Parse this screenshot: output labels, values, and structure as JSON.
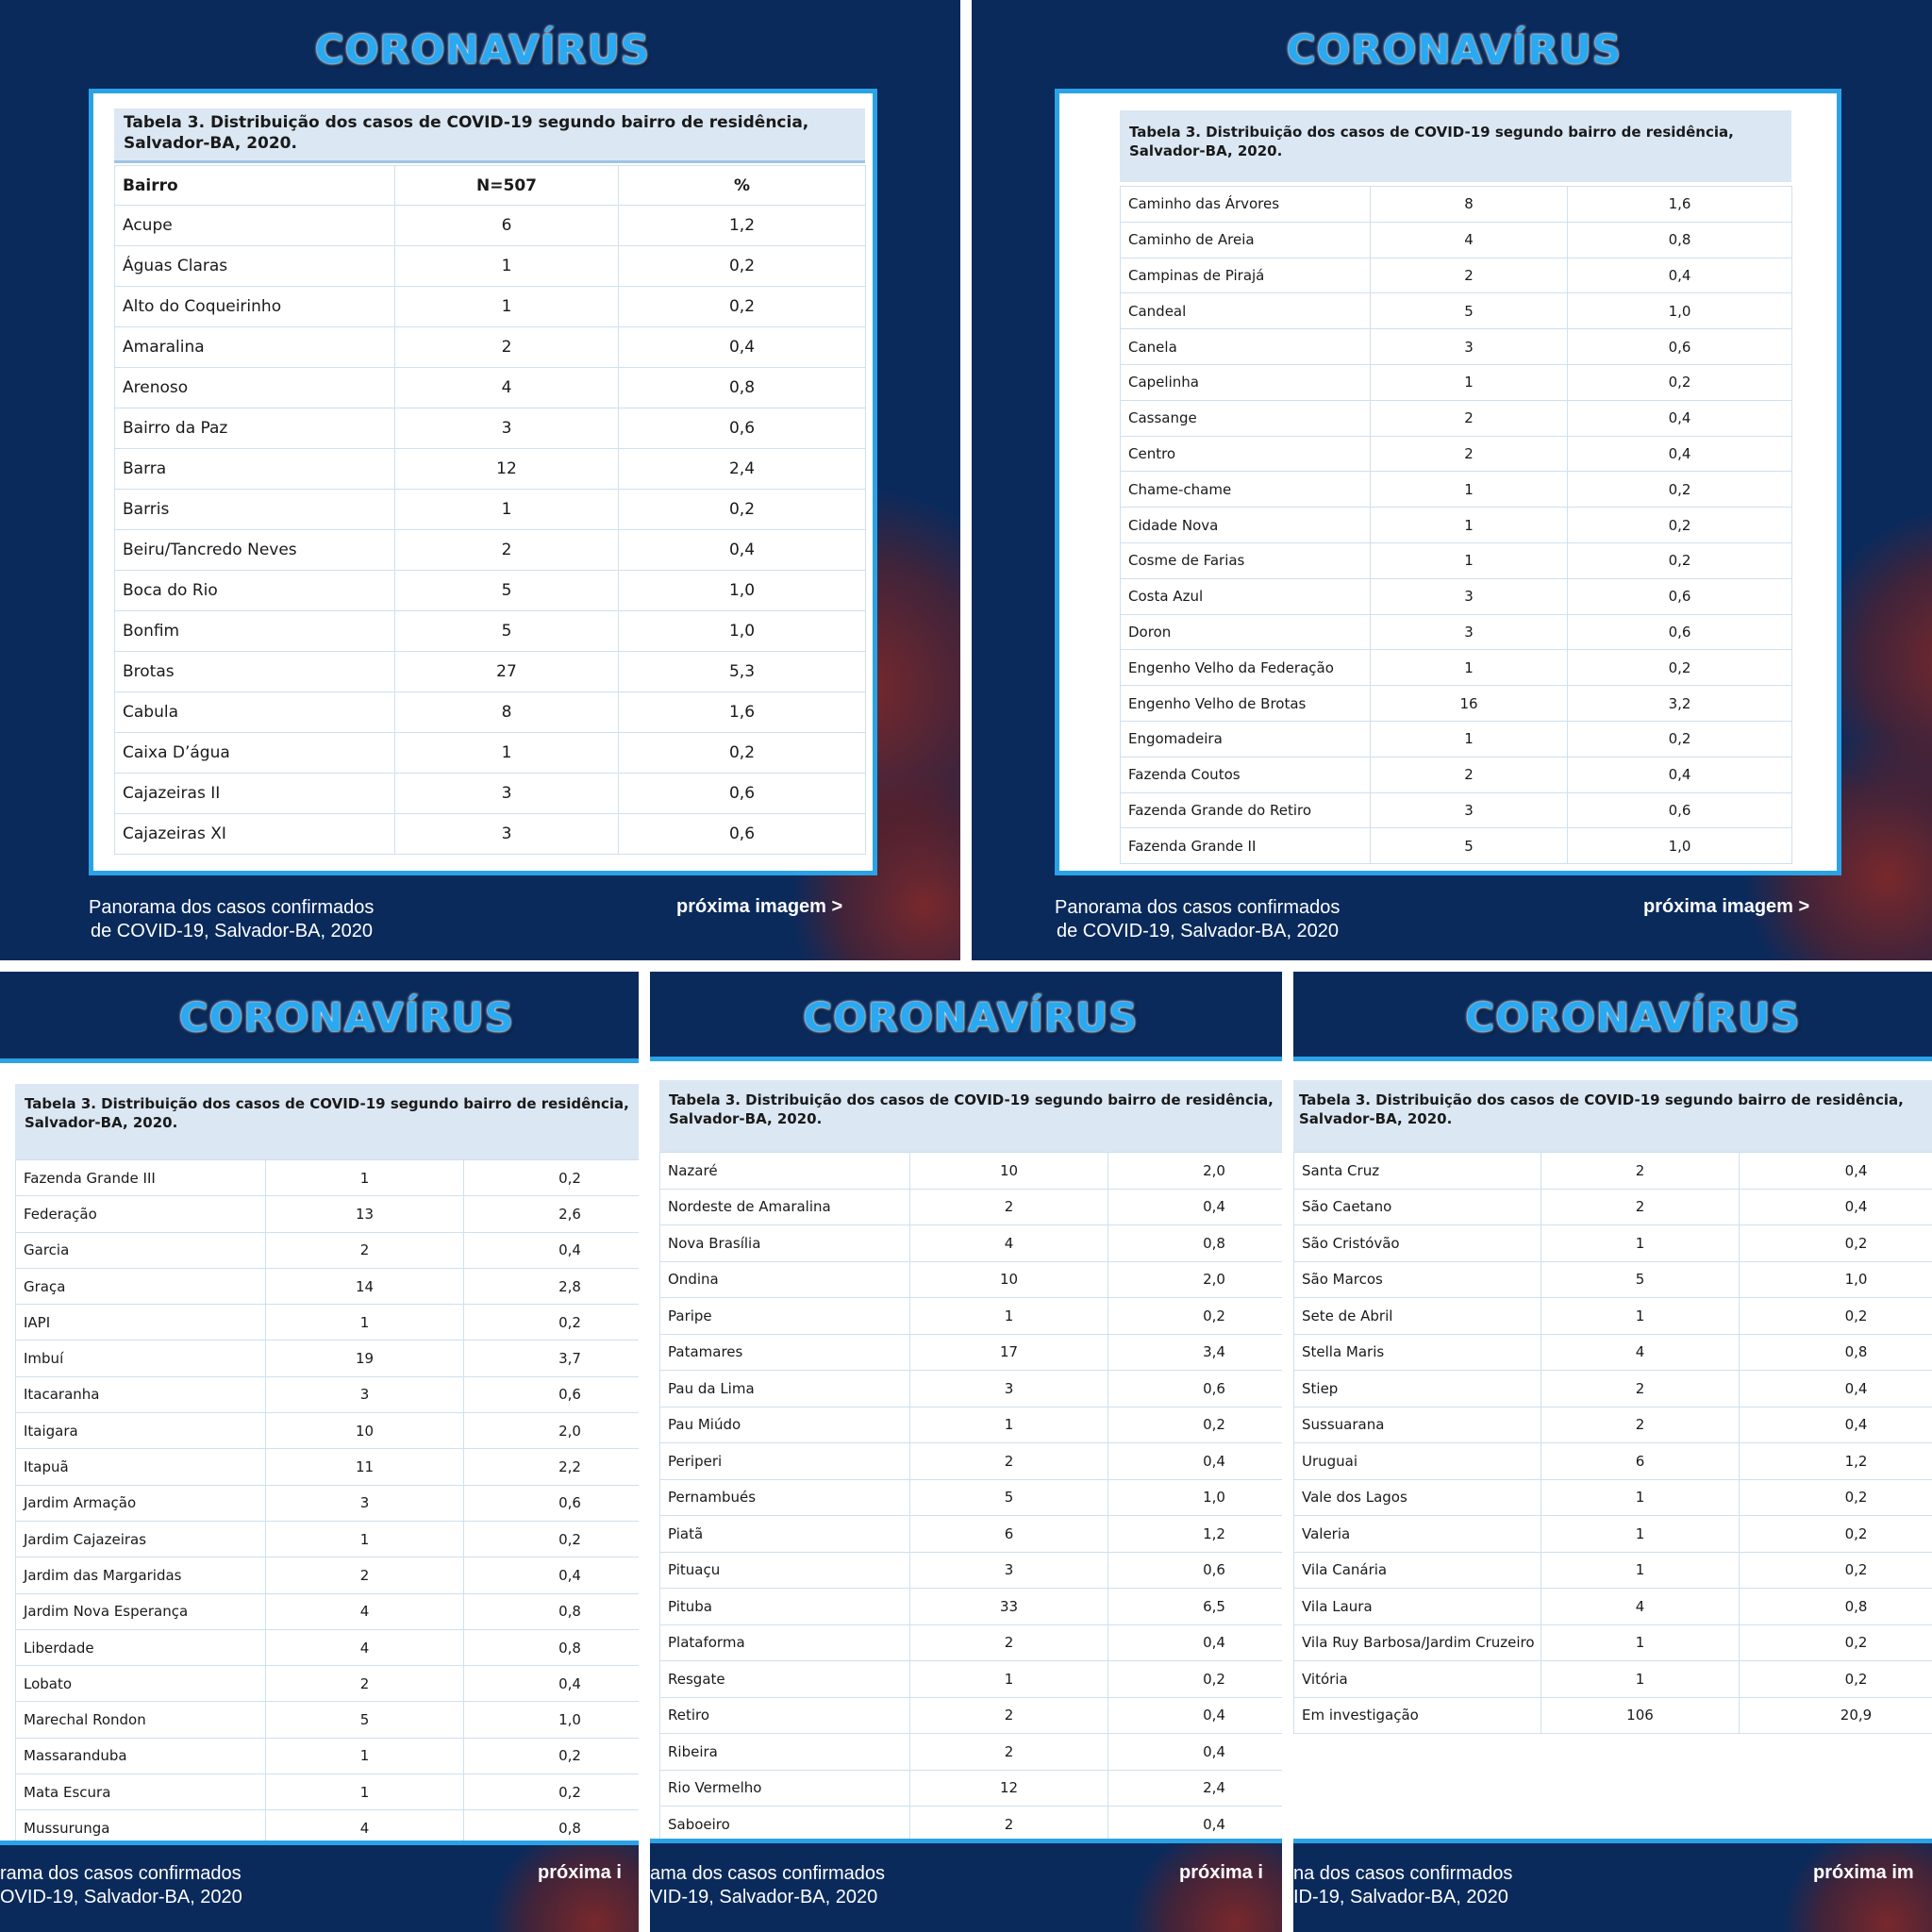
{
  "brand_title": "CORONAVÍRUS",
  "table_caption": "Tabela 3. Distribuição dos casos de COVID-19 segundo bairro de residência, Salvador-BA, 2020.",
  "footer_line1": "Panorama dos casos confirmados",
  "footer_line2": "de COVID-19, Salvador-BA, 2020",
  "footer_partial_line1_a": "rama dos casos confirmados",
  "footer_partial_line2_a": "OVID-19, Salvador-BA, 2020",
  "footer_partial_line1_b": "ama dos casos confirmados",
  "footer_partial_line2_b": "VID-19, Salvador-BA, 2020",
  "footer_partial_line1_c": "na dos casos confirmados",
  "footer_partial_line2_c": "ID-19, Salvador-BA, 2020",
  "next_label": "próxima imagem >",
  "next_label_partial_a": "próxima i",
  "next_label_partial_c": "próxima im",
  "header": {
    "col1": "Bairro",
    "col2": "N=507",
    "col3": "%"
  },
  "panel1_rows": [
    [
      "Acupe",
      "6",
      "1,2"
    ],
    [
      "Águas Claras",
      "1",
      "0,2"
    ],
    [
      "Alto do Coqueirinho",
      "1",
      "0,2"
    ],
    [
      "Amaralina",
      "2",
      "0,4"
    ],
    [
      "Arenoso",
      "4",
      "0,8"
    ],
    [
      "Bairro da Paz",
      "3",
      "0,6"
    ],
    [
      "Barra",
      "12",
      "2,4"
    ],
    [
      "Barris",
      "1",
      "0,2"
    ],
    [
      "Beiru/Tancredo Neves",
      "2",
      "0,4"
    ],
    [
      "Boca do Rio",
      "5",
      "1,0"
    ],
    [
      "Bonfim",
      "5",
      "1,0"
    ],
    [
      "Brotas",
      "27",
      "5,3"
    ],
    [
      "Cabula",
      "8",
      "1,6"
    ],
    [
      "Caixa D’água",
      "1",
      "0,2"
    ],
    [
      "Cajazeiras II",
      "3",
      "0,6"
    ],
    [
      "Cajazeiras XI",
      "3",
      "0,6"
    ]
  ],
  "panel2_rows": [
    [
      "Caminho das Árvores",
      "8",
      "1,6"
    ],
    [
      "Caminho de Areia",
      "4",
      "0,8"
    ],
    [
      "Campinas de Pirajá",
      "2",
      "0,4"
    ],
    [
      "Candeal",
      "5",
      "1,0"
    ],
    [
      "Canela",
      "3",
      "0,6"
    ],
    [
      "Capelinha",
      "1",
      "0,2"
    ],
    [
      "Cassange",
      "2",
      "0,4"
    ],
    [
      "Centro",
      "2",
      "0,4"
    ],
    [
      "Chame-chame",
      "1",
      "0,2"
    ],
    [
      "Cidade Nova",
      "1",
      "0,2"
    ],
    [
      "Cosme de Farias",
      "1",
      "0,2"
    ],
    [
      "Costa Azul",
      "3",
      "0,6"
    ],
    [
      "Doron",
      "3",
      "0,6"
    ],
    [
      "Engenho Velho da Federação",
      "1",
      "0,2"
    ],
    [
      "Engenho Velho de Brotas",
      "16",
      "3,2"
    ],
    [
      "Engomadeira",
      "1",
      "0,2"
    ],
    [
      "Fazenda Coutos",
      "2",
      "0,4"
    ],
    [
      "Fazenda Grande do Retiro",
      "3",
      "0,6"
    ],
    [
      "Fazenda Grande II",
      "5",
      "1,0"
    ]
  ],
  "panel3_rows": [
    [
      "Fazenda Grande III",
      "1",
      "0,2"
    ],
    [
      "Federação",
      "13",
      "2,6"
    ],
    [
      "Garcia",
      "2",
      "0,4"
    ],
    [
      "Graça",
      "14",
      "2,8"
    ],
    [
      "IAPI",
      "1",
      "0,2"
    ],
    [
      "Imbuí",
      "19",
      "3,7"
    ],
    [
      "Itacaranha",
      "3",
      "0,6"
    ],
    [
      "Itaigara",
      "10",
      "2,0"
    ],
    [
      "Itapuã",
      "11",
      "2,2"
    ],
    [
      "Jardim Armação",
      "3",
      "0,6"
    ],
    [
      "Jardim Cajazeiras",
      "1",
      "0,2"
    ],
    [
      "Jardim das Margaridas",
      "2",
      "0,4"
    ],
    [
      "Jardim Nova Esperança",
      "4",
      "0,8"
    ],
    [
      "Liberdade",
      "4",
      "0,8"
    ],
    [
      "Lobato",
      "2",
      "0,4"
    ],
    [
      "Marechal Rondon",
      "5",
      "1,0"
    ],
    [
      "Massaranduba",
      "1",
      "0,2"
    ],
    [
      "Mata Escura",
      "1",
      "0,2"
    ],
    [
      "Mussurunga",
      "4",
      "0,8"
    ]
  ],
  "panel4_rows": [
    [
      "Nazaré",
      "10",
      "2,0"
    ],
    [
      "Nordeste de Amaralina",
      "2",
      "0,4"
    ],
    [
      "Nova Brasília",
      "4",
      "0,8"
    ],
    [
      "Ondina",
      "10",
      "2,0"
    ],
    [
      "Paripe",
      "1",
      "0,2"
    ],
    [
      "Patamares",
      "17",
      "3,4"
    ],
    [
      "Pau da Lima",
      "3",
      "0,6"
    ],
    [
      "Pau Miúdo",
      "1",
      "0,2"
    ],
    [
      "Periperi",
      "2",
      "0,4"
    ],
    [
      "Pernambués",
      "5",
      "1,0"
    ],
    [
      "Piatã",
      "6",
      "1,2"
    ],
    [
      "Pituaçu",
      "3",
      "0,6"
    ],
    [
      "Pituba",
      "33",
      "6,5"
    ],
    [
      "Plataforma",
      "2",
      "0,4"
    ],
    [
      "Resgate",
      "1",
      "0,2"
    ],
    [
      "Retiro",
      "2",
      "0,4"
    ],
    [
      "Ribeira",
      "2",
      "0,4"
    ],
    [
      "Rio Vermelho",
      "12",
      "2,4"
    ],
    [
      "Saboeiro",
      "2",
      "0,4"
    ]
  ],
  "panel5_rows": [
    [
      "Santa Cruz",
      "2",
      "0,4"
    ],
    [
      "São Caetano",
      "2",
      "0,4"
    ],
    [
      "São Cristóvão",
      "1",
      "0,2"
    ],
    [
      "São Marcos",
      "5",
      "1,0"
    ],
    [
      "Sete de Abril",
      "1",
      "0,2"
    ],
    [
      "Stella Maris",
      "4",
      "0,8"
    ],
    [
      "Stiep",
      "2",
      "0,4"
    ],
    [
      "Sussuarana",
      "2",
      "0,4"
    ],
    [
      "Uruguai",
      "6",
      "1,2"
    ],
    [
      "Vale dos Lagos",
      "1",
      "0,2"
    ],
    [
      "Valeria",
      "1",
      "0,2"
    ],
    [
      "Vila Canária",
      "1",
      "0,2"
    ],
    [
      "Vila Laura",
      "4",
      "0,8"
    ],
    [
      "Vila Ruy Barbosa/Jardim Cruzeiro",
      "1",
      "0,2"
    ],
    [
      "Vitória",
      "1",
      "0,2"
    ],
    [
      "Em investigação",
      "106",
      "20,9"
    ]
  ],
  "colors": {
    "panel_bg": "#0a2a5c",
    "title_blue": "#29a9f2",
    "caption_bg": "#dbe7f3",
    "table_border": "#2aa3e6"
  }
}
